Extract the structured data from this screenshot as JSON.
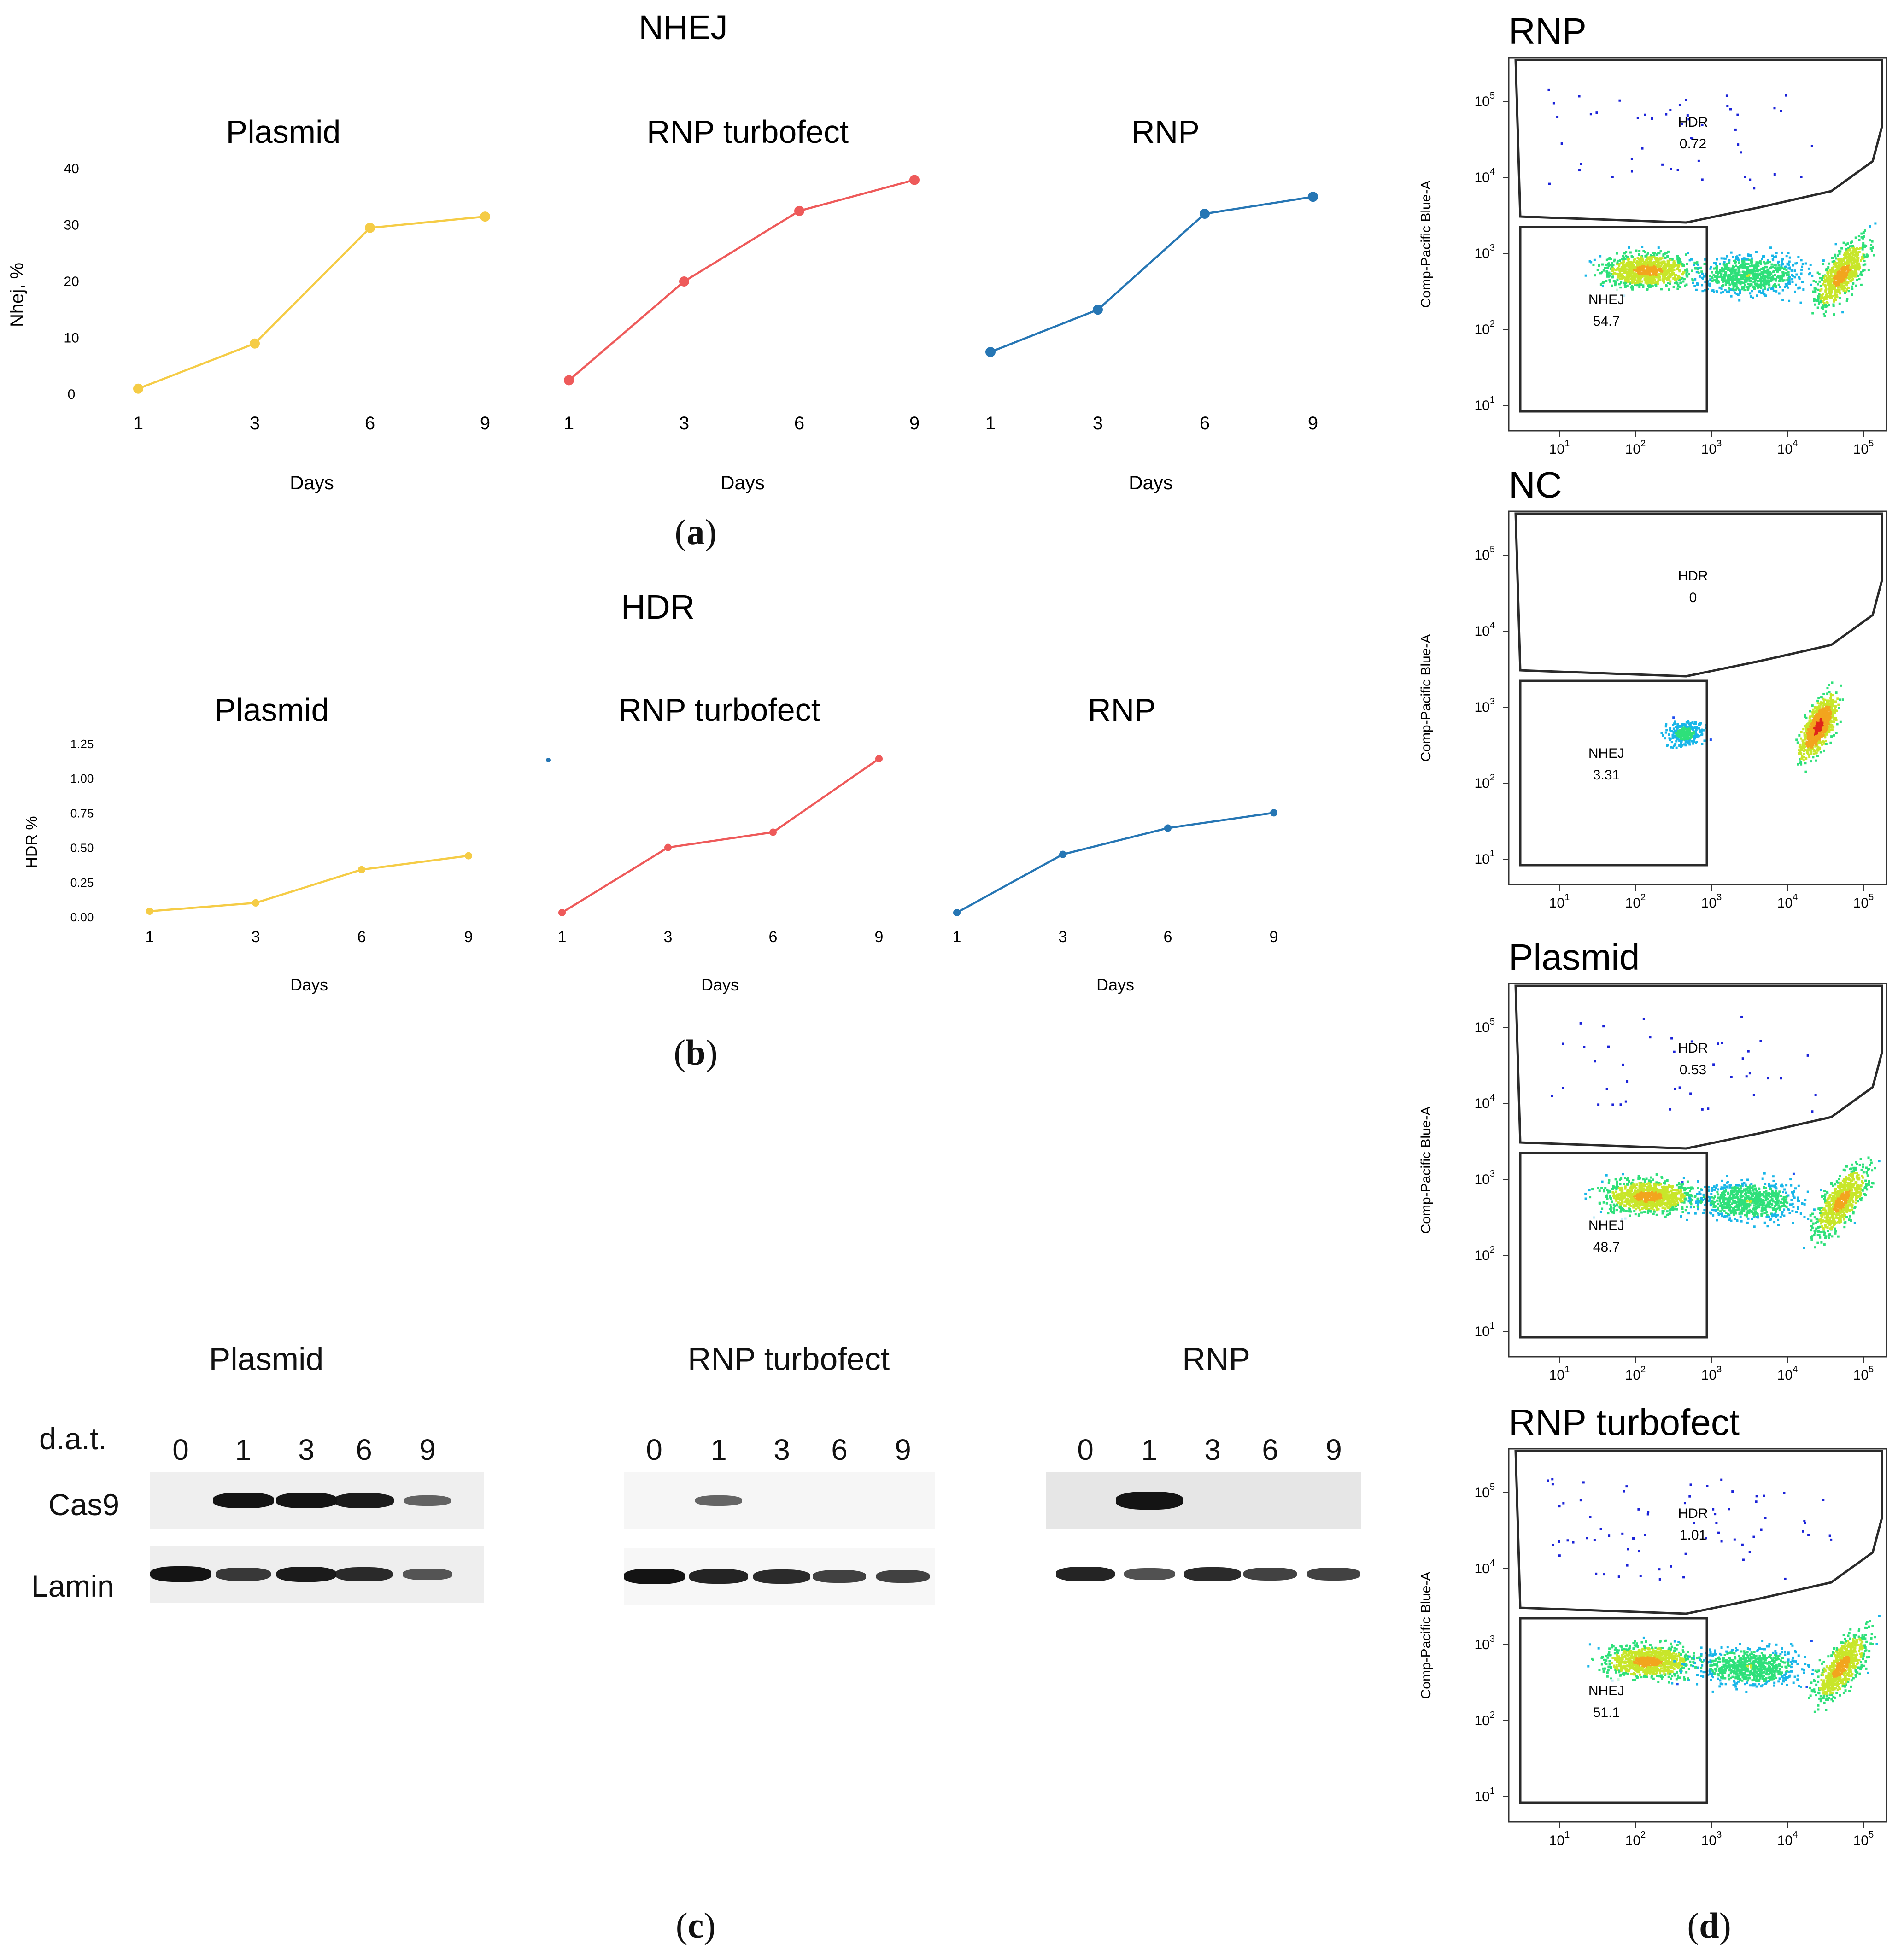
{
  "panels": {
    "a": {
      "title": "NHEJ",
      "caption_letter": "a",
      "ylabel": "Nhej, %",
      "xlabel": "Days",
      "yticks": [
        "0",
        "10",
        "20",
        "30",
        "40"
      ],
      "ylim": [
        0,
        40
      ]
    },
    "b": {
      "title": "HDR",
      "caption_letter": "b",
      "ylabel": "HDR %",
      "xlabel": "Days",
      "yticks": [
        "0.00",
        "0.25",
        "0.50",
        "0.75",
        "1.00",
        "1.25"
      ],
      "ylim": [
        0,
        1.25
      ]
    },
    "c": {
      "caption_letter": "c",
      "row_header": "d.a.t.",
      "row_labels": [
        "Cas9",
        "Lamin"
      ],
      "lanes": [
        "0",
        "1",
        "3",
        "6",
        "9"
      ],
      "blots": [
        {
          "name": "Plasmid",
          "cas9": [
            0,
            1.0,
            1.0,
            0.95,
            0.45
          ],
          "lamin": [
            1.0,
            0.75,
            0.95,
            0.85,
            0.55
          ]
        },
        {
          "name": "RNP turbofect",
          "cas9": [
            0,
            0.45,
            0,
            0,
            0
          ],
          "lamin": [
            1.0,
            0.9,
            0.85,
            0.7,
            0.7
          ]
        },
        {
          "name": "RNP",
          "cas9": [
            0,
            1.25,
            0,
            0,
            0
          ],
          "lamin": [
            0.9,
            0.6,
            0.85,
            0.7,
            0.7
          ]
        }
      ]
    },
    "d": {
      "caption_letter": "d",
      "ylabel": "Comp-Pacific Blue-A",
      "ytick_exps": [
        "1",
        "2",
        "3",
        "4",
        "5"
      ],
      "xtick_exps": [
        "1",
        "2",
        "3",
        "4",
        "5"
      ],
      "gate_hdr": "HDR",
      "gate_nhej": "NHEJ",
      "plots": [
        {
          "title": "RNP",
          "hdr": "0.72",
          "nhej": "54.7"
        },
        {
          "title": "NC",
          "hdr": "0",
          "nhej": "3.31"
        },
        {
          "title": "Plasmid",
          "hdr": "0.53",
          "nhej": "48.7"
        },
        {
          "title": "RNP turbofect",
          "hdr": "1.01",
          "nhej": "51.1"
        }
      ]
    }
  },
  "colors": {
    "plasmid": "#f5cc46",
    "rnp_turbofect": "#ee5a5a",
    "rnp": "#2676b4"
  },
  "chart_data": [
    {
      "type": "line",
      "title": "NHEJ",
      "xlabel": "Days",
      "ylabel": "Nhej, %",
      "ylim": [
        0,
        40
      ],
      "subplots": [
        {
          "title": "Plasmid",
          "x": [
            "1",
            "3",
            "6",
            "9"
          ],
          "values": [
            1,
            9,
            29.5,
            31.5
          ]
        },
        {
          "title": "RNP turbofect",
          "x": [
            "1",
            "3",
            "6",
            "9"
          ],
          "values": [
            2.5,
            20,
            32.5,
            38
          ]
        },
        {
          "title": "RNP",
          "x": [
            "1",
            "3",
            "6",
            "9"
          ],
          "values": [
            7.5,
            15,
            32,
            35
          ]
        }
      ]
    },
    {
      "type": "line",
      "title": "HDR",
      "xlabel": "Days",
      "ylabel": "HDR %",
      "ylim": [
        0,
        1.25
      ],
      "subplots": [
        {
          "title": "Plasmid",
          "x": [
            "1",
            "3",
            "6",
            "9"
          ],
          "values": [
            0.04,
            0.1,
            0.34,
            0.44
          ]
        },
        {
          "title": "RNP turbofect",
          "x": [
            "1",
            "3",
            "6",
            "9"
          ],
          "values": [
            0.03,
            0.5,
            0.61,
            1.14
          ]
        },
        {
          "title": "RNP",
          "x": [
            "1",
            "3",
            "6",
            "9"
          ],
          "values": [
            0.03,
            0.45,
            0.64,
            0.75
          ]
        }
      ]
    }
  ]
}
